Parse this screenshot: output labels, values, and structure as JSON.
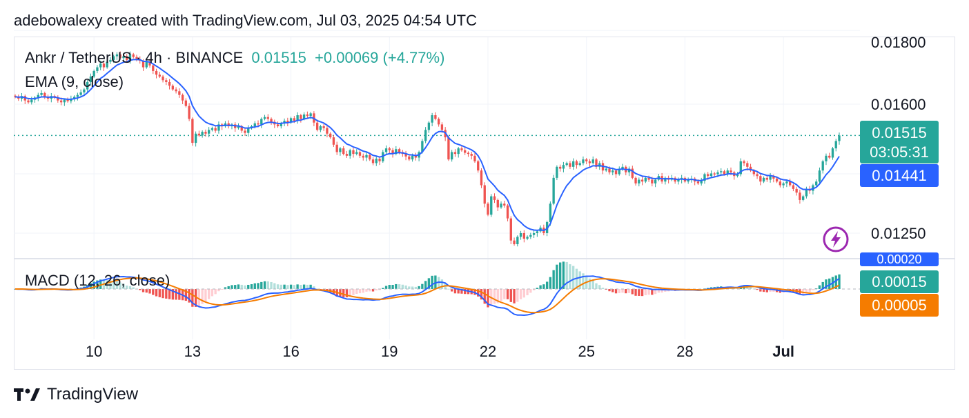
{
  "caption": "adebowalexy created with TradingView.com, Jul 03, 2025 04:54 UTC",
  "legend": {
    "symbol": "Ankr / TetherUS · 4h · BINANCE",
    "price": "0.01515",
    "change": "+0.00069 (+4.77%)",
    "ema": "EMA (9, close)",
    "macd": "MACD (12, 26, close)"
  },
  "tags": {
    "price": "0.01515",
    "countdown": "03:05:31",
    "ema": "0.01441",
    "macd_hidden": "0.00020",
    "macd": "0.00015",
    "signal": "0.00005"
  },
  "footer": {
    "brand": "TradingView"
  },
  "colors": {
    "up": "#26a69a",
    "down": "#ef5350",
    "ema": "#2962ff",
    "macd": "#2962ff",
    "signal": "#f57c00",
    "hist_up": "#26a69a",
    "hist_up_light": "#b2dfdb",
    "hist_down": "#ef5350",
    "hist_down_light": "#ffcdd2"
  },
  "chart_data": {
    "type": "candlestick",
    "interval": "4h",
    "y_ticks": [
      "0.01800",
      "0.01600",
      "0.01250"
    ],
    "y_tick_values": [
      0.018,
      0.016,
      0.0125
    ],
    "x_ticks": [
      "10",
      "13",
      "16",
      "19",
      "22",
      "25",
      "28",
      "Jul"
    ],
    "x_tick_index": [
      24,
      54,
      84,
      114,
      144,
      174,
      204,
      234
    ],
    "current_price": 0.01515,
    "ema_last": 0.01441,
    "macd_last": 0.00015,
    "signal_last": 5e-05,
    "close_series": [
      0.0162,
      0.01615,
      0.01622,
      0.0161,
      0.01605,
      0.01612,
      0.01618,
      0.01625,
      0.0163,
      0.0162,
      0.01615,
      0.01622,
      0.01618,
      0.0161,
      0.01605,
      0.01612,
      0.01608,
      0.01615,
      0.0162,
      0.01625,
      0.01632,
      0.0164,
      0.0166,
      0.01675,
      0.0169,
      0.017,
      0.0171,
      0.017,
      0.01715,
      0.0172,
      0.0173,
      0.01735,
      0.01725,
      0.0173,
      0.0172,
      0.01735,
      0.01728,
      0.01722,
      0.01718,
      0.017,
      0.01715,
      0.01705,
      0.0169,
      0.0168,
      0.01675,
      0.01665,
      0.0166,
      0.0165,
      0.0164,
      0.01635,
      0.01625,
      0.0161,
      0.01595,
      0.0156,
      0.01495,
      0.0152,
      0.01515,
      0.01525,
      0.0152,
      0.0153,
      0.01535,
      0.01528,
      0.01545,
      0.0154,
      0.01548,
      0.0154,
      0.01545,
      0.01535,
      0.0154,
      0.01528,
      0.01522,
      0.01535,
      0.0154,
      0.01548,
      0.01545,
      0.0156,
      0.01565,
      0.0156,
      0.01552,
      0.01545,
      0.0154,
      0.01548,
      0.01555,
      0.0155,
      0.01562,
      0.01555,
      0.0157,
      0.0156,
      0.01572,
      0.01568,
      0.01575,
      0.0155,
      0.0153,
      0.0154,
      0.01535,
      0.0152,
      0.0151,
      0.0149,
      0.0147,
      0.0148,
      0.01465,
      0.0146,
      0.01475,
      0.01465,
      0.0147,
      0.0146,
      0.01455,
      0.01462,
      0.0145,
      0.0144,
      0.01452,
      0.01445,
      0.0147,
      0.0148,
      0.01475,
      0.01465,
      0.01478,
      0.0147,
      0.01465,
      0.01458,
      0.0145,
      0.0146,
      0.01455,
      0.0147,
      0.015,
      0.0153,
      0.0155,
      0.0157,
      0.0156,
      0.01545,
      0.0153,
      0.0151,
      0.0145,
      0.0147,
      0.01465,
      0.0148,
      0.01475,
      0.01468,
      0.01465,
      0.0146,
      0.01445,
      0.0142,
      0.0138,
      0.0133,
      0.013,
      0.0135,
      0.0134,
      0.0132,
      0.0133,
      0.01325,
      0.0129,
      0.0123,
      0.0122,
      0.0124,
      0.0125,
      0.01235,
      0.0124,
      0.01245,
      0.0125,
      0.01255,
      0.01265,
      0.0125,
      0.0128,
      0.0133,
      0.014,
      0.0143,
      0.01425,
      0.01435,
      0.0144,
      0.0143,
      0.01445,
      0.01435,
      0.0144,
      0.0145,
      0.01445,
      0.0144,
      0.0145,
      0.0143,
      0.0144,
      0.0142,
      0.01425,
      0.01415,
      0.0142,
      0.0141,
      0.01425,
      0.0143,
      0.01415,
      0.01425,
      0.014,
      0.01385,
      0.01395,
      0.0139,
      0.014,
      0.01395,
      0.01385,
      0.01395,
      0.01405,
      0.0139,
      0.014,
      0.01395,
      0.014,
      0.0139,
      0.01395,
      0.014,
      0.0139,
      0.01395,
      0.01398,
      0.0139,
      0.01385,
      0.01392,
      0.0141,
      0.01405,
      0.01412,
      0.0141,
      0.01415,
      0.01418,
      0.0141,
      0.0142,
      0.01415,
      0.01405,
      0.0141,
      0.01445,
      0.0144,
      0.0143,
      0.0142,
      0.0141,
      0.01405,
      0.0139,
      0.014,
      0.01395,
      0.01405,
      0.01398,
      0.0139,
      0.0138,
      0.01385,
      0.0139,
      0.0138,
      0.0137,
      0.0136,
      0.0134,
      0.0135,
      0.0137,
      0.01365,
      0.0138,
      0.0139,
      0.0142,
      0.01445,
      0.0146,
      0.01455,
      0.0148,
      0.015,
      0.01515
    ],
    "ema_color": "blue",
    "histogram_shading": "teal for rising above zero, red for falling below zero"
  }
}
